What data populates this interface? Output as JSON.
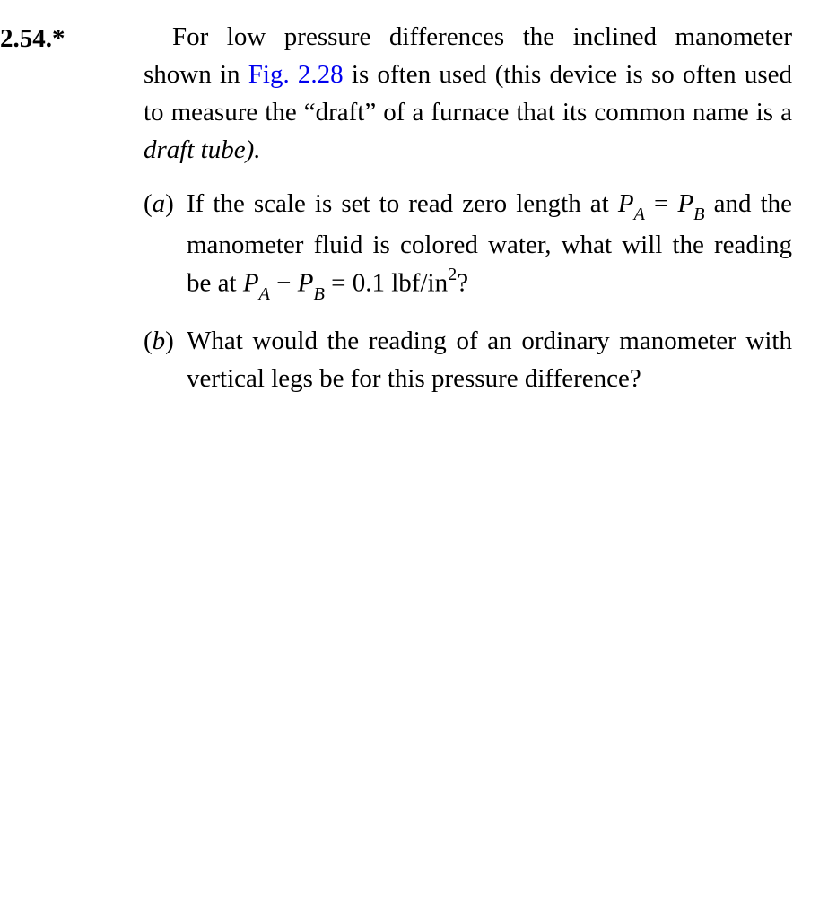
{
  "problem": {
    "number": "2.54.*",
    "intro": {
      "pre": "For low pressure differences the inclined manometer shown in ",
      "link": "Fig. 2.28",
      "post": " is often used (this device is so often used to measure the “draft” of a furnace that its common name is a ",
      "italic": "draft tube).",
      "link_color": "#0000ee"
    },
    "partA": {
      "label": "(a)",
      "t1": "If the scale is set to read zero length at ",
      "PA_P": "P",
      "PA_sub": "A",
      "eq": " = ",
      "PB_P": "P",
      "PB_sub": "B",
      "t2": " and the manometer fluid is colored water, what will the reading be at ",
      "PA2_P": "P",
      "PA2_sub": "A",
      "minus": " − ",
      "PB2_P": "P",
      "PB2_sub": "B",
      "eq2": " = 0.1 lbf/in",
      "sup": "2",
      "q": "?"
    },
    "partB": {
      "label": "(b)",
      "text": "What would the reading of an ordinary manometer with vertical legs be for this pressure difference?"
    }
  },
  "style": {
    "font_family": "Times New Roman",
    "font_size_pt": 22,
    "text_color": "#000000",
    "bg_color": "#ffffff"
  }
}
